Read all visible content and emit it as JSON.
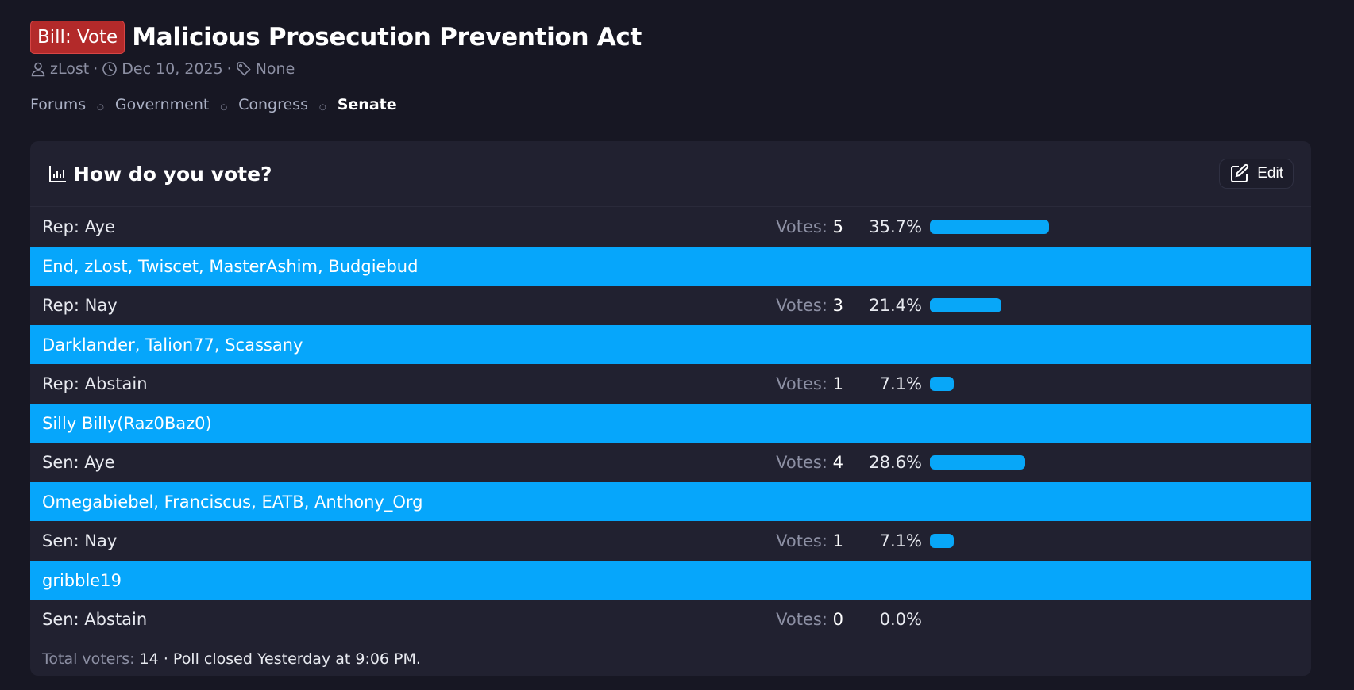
{
  "thread": {
    "prefix": "Bill: Vote",
    "title": "Malicious Prosecution Prevention Act",
    "author": "zLost",
    "date": "Dec 10, 2025",
    "tags": "None",
    "meta_sep": "·"
  },
  "breadcrumb": {
    "items": [
      "Forums",
      "Government",
      "Congress",
      "Senate"
    ],
    "separator": "○"
  },
  "poll": {
    "title": "How do you vote?",
    "edit_label": "Edit",
    "votes_prefix": "Votes:",
    "options": [
      {
        "label": "Rep: Aye",
        "votes": "5",
        "percent": "35.7%",
        "fraction": 0.357,
        "voters": "End, zLost, Twiscet, MasterAshim, Budgiebud"
      },
      {
        "label": "Rep: Nay",
        "votes": "3",
        "percent": "21.4%",
        "fraction": 0.214,
        "voters": "Darklander, Talion77, Scassany"
      },
      {
        "label": "Rep: Abstain",
        "votes": "1",
        "percent": "7.1%",
        "fraction": 0.071,
        "voters": "Silly Billy(Raz0Baz0)"
      },
      {
        "label": "Sen: Aye",
        "votes": "4",
        "percent": "28.6%",
        "fraction": 0.286,
        "voters": "Omegabiebel, Franciscus, EATB, Anthony_Org"
      },
      {
        "label": "Sen: Nay",
        "votes": "1",
        "percent": "7.1%",
        "fraction": 0.071,
        "voters": "gribble19"
      },
      {
        "label": "Sen: Abstain",
        "votes": "0",
        "percent": "0.0%",
        "fraction": 0.0,
        "voters": ""
      }
    ],
    "footer": {
      "total_label": "Total voters:",
      "total": "14",
      "closed": "· Poll closed Yesterday at 9:06 PM."
    }
  },
  "colors": {
    "background": "#171723",
    "card": "#212130",
    "prefix_red": "#b32a2a",
    "accent_blue": "#06a6fb"
  },
  "icons": {
    "author": "user-icon",
    "date": "clock-icon",
    "tags": "tag-icon",
    "poll": "bar-chart-icon",
    "edit": "edit-icon"
  }
}
